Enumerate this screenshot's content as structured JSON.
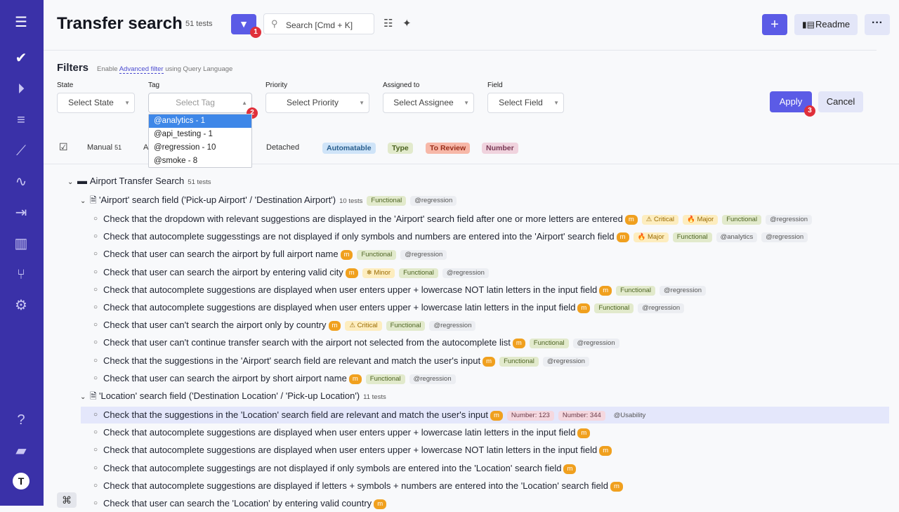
{
  "header": {
    "title": "Transfer search",
    "count": "51 tests",
    "search_placeholder": "Search [Cmd + K]",
    "readme": "Readme",
    "step1": "1",
    "step2": "2",
    "step3": "3"
  },
  "filters": {
    "title": "Filters",
    "enable": "Enable",
    "advanced": "Advanced filter",
    "using": "using Query Language",
    "state_label": "State",
    "state_value": "Select State",
    "tag_label": "Tag",
    "tag_value": "Select Tag",
    "priority_label": "Priority",
    "priority_value": "Select Priority",
    "assigned_label": "Assigned to",
    "assigned_value": "Select Assignee",
    "field_label": "Field",
    "field_value": "Select Field",
    "apply": "Apply",
    "cancel": "Cancel",
    "tag_options": [
      "@analytics - 1",
      "@api_testing - 1",
      "@regression - 10",
      "@smoke - 8"
    ],
    "tag_selected_index": 0
  },
  "view_tabs": {
    "manual": "Manual",
    "manual_count": "51",
    "truncated": "A",
    "detached": "Detached",
    "automatable": "Automatable",
    "type": "Type",
    "to_review": "To Review",
    "number": "Number"
  },
  "colors": {
    "sidebar": "#3a31a8",
    "accent": "#5b5be6",
    "manual_badge": "#f0a01e"
  },
  "tree": {
    "suite": {
      "title": "Airport Transfer Search",
      "count": "51 tests"
    },
    "sections": [
      {
        "title": "'Airport' search field ('Pick-up Airport' / 'Destination Airport')",
        "count": "10 tests",
        "badges": [
          {
            "type": "functional",
            "text": "Functional"
          },
          {
            "type": "tag",
            "text": "@regression"
          }
        ],
        "tests": [
          {
            "title": "Check that the dropdown with relevant suggestions are displayed in the 'Airport' search field after one or more letters are entered",
            "badges": [
              {
                "type": "m",
                "text": "m"
              },
              {
                "type": "critical",
                "text": "⚠ Critical"
              },
              {
                "type": "major",
                "text": "🔥 Major"
              },
              {
                "type": "functional",
                "text": "Functional"
              },
              {
                "type": "tag",
                "text": "@regression"
              }
            ]
          },
          {
            "title": "Check that autocomplete suggesstings are not displayed if only symbols and numbers are entered into the 'Airport' search field",
            "badges": [
              {
                "type": "m",
                "text": "m"
              },
              {
                "type": "major",
                "text": "🔥 Major"
              },
              {
                "type": "functional",
                "text": "Functional"
              },
              {
                "type": "tag",
                "text": "@analytics"
              },
              {
                "type": "tag",
                "text": "@regression"
              }
            ]
          },
          {
            "title": "Check that user can search the airport by full airport name",
            "badges": [
              {
                "type": "m",
                "text": "m"
              },
              {
                "type": "functional",
                "text": "Functional"
              },
              {
                "type": "tag",
                "text": "@regression"
              }
            ]
          },
          {
            "title": "Check that user can search the airport by entering valid city",
            "badges": [
              {
                "type": "m",
                "text": "m"
              },
              {
                "type": "minor",
                "text": "❄ Minor"
              },
              {
                "type": "functional",
                "text": "Functional"
              },
              {
                "type": "tag",
                "text": "@regression"
              }
            ]
          },
          {
            "title": "Check that autocomplete suggestions are displayed when user enters upper + lowercase NOT latin letters in the input field",
            "badges": [
              {
                "type": "m",
                "text": "m"
              },
              {
                "type": "functional",
                "text": "Functional"
              },
              {
                "type": "tag",
                "text": "@regression"
              }
            ]
          },
          {
            "title": "Check that autocomplete suggestions are displayed when user enters upper + lowercase latin letters in the input field",
            "badges": [
              {
                "type": "m",
                "text": "m"
              },
              {
                "type": "functional",
                "text": "Functional"
              },
              {
                "type": "tag",
                "text": "@regression"
              }
            ]
          },
          {
            "title": "Check that user can't search the airport only by country",
            "badges": [
              {
                "type": "m",
                "text": "m"
              },
              {
                "type": "critical",
                "text": "⚠ Critical"
              },
              {
                "type": "functional",
                "text": "Functional"
              },
              {
                "type": "tag",
                "text": "@regression"
              }
            ]
          },
          {
            "title": "Check that user can't continue transfer search with the airport not selected from the autocomplete list",
            "badges": [
              {
                "type": "m",
                "text": "m"
              },
              {
                "type": "functional",
                "text": "Functional"
              },
              {
                "type": "tag",
                "text": "@regression"
              }
            ]
          },
          {
            "title": "Check that the suggestions in the 'Airport' search field are relevant and match the user's input",
            "badges": [
              {
                "type": "m",
                "text": "m"
              },
              {
                "type": "functional",
                "text": "Functional"
              },
              {
                "type": "tag",
                "text": "@regression"
              }
            ]
          },
          {
            "title": "Check that user can search the airport by short airport name",
            "badges": [
              {
                "type": "m",
                "text": "m"
              },
              {
                "type": "functional",
                "text": "Functional"
              },
              {
                "type": "tag",
                "text": "@regression"
              }
            ]
          }
        ]
      },
      {
        "title": "'Location' search field ('Destination Location' / 'Pick-up Location')",
        "count": "11 tests",
        "badges": [],
        "tests": [
          {
            "title": "Check that the suggestions in the 'Location' search field are relevant and match the user's input",
            "highlighted": true,
            "badges": [
              {
                "type": "m",
                "text": "m"
              },
              {
                "type": "number",
                "text": "Number: 123"
              },
              {
                "type": "number",
                "text": "Number: 344"
              },
              {
                "type": "plain",
                "text": "@Usability"
              }
            ]
          },
          {
            "title": "Check that autocomplete suggestions are displayed when user enters upper + lowercase latin letters in the input field",
            "badges": [
              {
                "type": "m",
                "text": "m"
              }
            ]
          },
          {
            "title": "Check that autocomplete suggestions are displayed when user enters upper + lowercase NOT latin letters in the input field",
            "badges": [
              {
                "type": "m",
                "text": "m"
              }
            ]
          },
          {
            "title": "Check that autocomplete suggestings are not displayed if only symbols are entered into the 'Location' search field",
            "badges": [
              {
                "type": "m",
                "text": "m"
              }
            ]
          },
          {
            "title": "Check that autocomplete suggestions are displayed if letters + symbols + numbers are entered into the 'Location' search field",
            "badges": [
              {
                "type": "m",
                "text": "m"
              }
            ]
          },
          {
            "title": "Check that user can search the 'Location' by entering valid country",
            "badges": [
              {
                "type": "m",
                "text": "m"
              }
            ]
          }
        ]
      }
    ]
  }
}
